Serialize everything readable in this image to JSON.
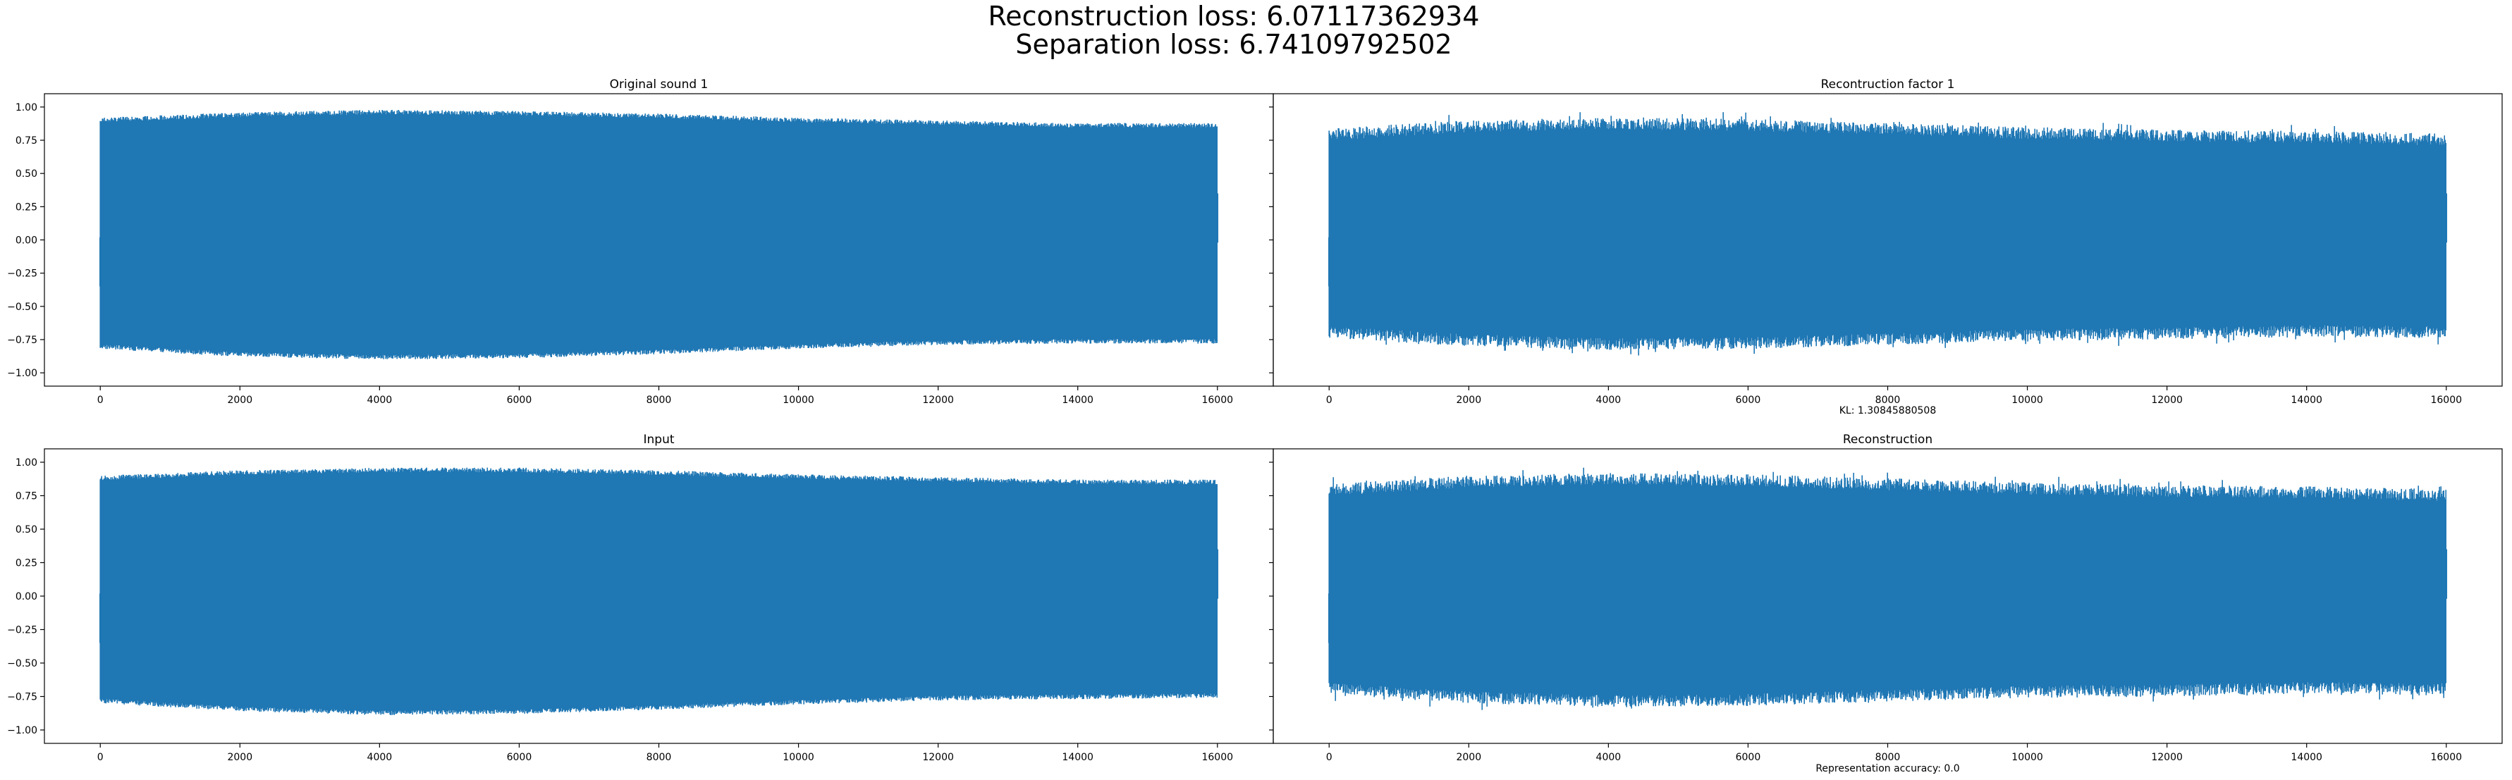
{
  "figure": {
    "suptitle_lines": [
      "Reconstruction loss: 6.07117362934",
      "Separation loss: 6.74109792502"
    ],
    "series_color": "#1f77b4",
    "axes_color": "#000000"
  },
  "chart_data": [
    {
      "type": "line",
      "title": "Original sound 1",
      "xlabel": "",
      "ylabel": "",
      "xlim": [
        -800,
        16800
      ],
      "ylim": [
        -1.1,
        1.1
      ],
      "xticks": [
        0,
        2000,
        4000,
        6000,
        8000,
        10000,
        12000,
        14000,
        16000
      ],
      "yticks": [
        1.0,
        0.75,
        0.5,
        0.25,
        0.0,
        -0.25,
        -0.5,
        -0.75,
        -1.0
      ],
      "ytick_labels": [
        "1.00",
        "0.75",
        "0.50",
        "0.25",
        "0.00",
        "−0.25",
        "−0.50",
        "−0.75",
        "−1.00"
      ],
      "footnote": "",
      "show_yticklabels": true,
      "n_samples": 16000,
      "envelope": {
        "x": [
          0,
          2000,
          4000,
          6000,
          8000,
          10000,
          12000,
          14000,
          16000
        ],
        "upper": [
          0.92,
          0.96,
          0.98,
          0.97,
          0.95,
          0.92,
          0.9,
          0.88,
          0.88
        ],
        "lower": [
          -0.82,
          -0.88,
          -0.9,
          -0.89,
          -0.86,
          -0.82,
          -0.79,
          -0.78,
          -0.78
        ]
      },
      "series": [
        {
          "values": "16000 samples of audio waveform (dense oscillation within envelope)"
        }
      ]
    },
    {
      "type": "line",
      "title": "Recontruction factor 1",
      "xlabel": "",
      "ylabel": "",
      "xlim": [
        -800,
        16800
      ],
      "ylim": [
        -1.1,
        1.1
      ],
      "xticks": [
        0,
        2000,
        4000,
        6000,
        8000,
        10000,
        12000,
        14000,
        16000
      ],
      "yticks": [
        1.0,
        0.75,
        0.5,
        0.25,
        0.0,
        -0.25,
        -0.5,
        -0.75,
        -1.0
      ],
      "footnote": "KL: 1.30845880508",
      "show_yticklabels": false,
      "n_samples": 16000,
      "envelope": {
        "x": [
          0,
          2000,
          4000,
          6000,
          8000,
          10000,
          12000,
          14000,
          16000
        ],
        "upper": [
          0.84,
          0.9,
          0.92,
          0.91,
          0.88,
          0.85,
          0.83,
          0.82,
          0.8
        ],
        "lower": [
          -0.74,
          -0.8,
          -0.83,
          -0.82,
          -0.79,
          -0.76,
          -0.75,
          -0.73,
          -0.74
        ]
      },
      "series": [
        {
          "values": "16000 samples of reconstructed waveform (noisier envelope)"
        }
      ]
    },
    {
      "type": "line",
      "title": "Input",
      "xlabel": "",
      "ylabel": "",
      "xlim": [
        -800,
        16800
      ],
      "ylim": [
        -1.1,
        1.1
      ],
      "xticks": [
        0,
        2000,
        4000,
        6000,
        8000,
        10000,
        12000,
        14000,
        16000
      ],
      "yticks": [
        1.0,
        0.75,
        0.5,
        0.25,
        0.0,
        -0.25,
        -0.5,
        -0.75,
        -1.0
      ],
      "ytick_labels": [
        "1.00",
        "0.75",
        "0.50",
        "0.25",
        "0.00",
        "−0.25",
        "−0.50",
        "−0.75",
        "−1.00"
      ],
      "footnote": "",
      "show_yticklabels": true,
      "n_samples": 16000,
      "envelope": {
        "x": [
          0,
          2000,
          4000,
          6000,
          8000,
          10000,
          12000,
          14000,
          16000
        ],
        "upper": [
          0.9,
          0.94,
          0.96,
          0.96,
          0.94,
          0.91,
          0.89,
          0.87,
          0.87
        ],
        "lower": [
          -0.8,
          -0.86,
          -0.89,
          -0.88,
          -0.85,
          -0.81,
          -0.78,
          -0.77,
          -0.76
        ]
      },
      "series": [
        {
          "values": "16000 samples of input waveform (dense oscillation within envelope)"
        }
      ]
    },
    {
      "type": "line",
      "title": "Reconstruction",
      "xlabel": "",
      "ylabel": "",
      "xlim": [
        -800,
        16800
      ],
      "ylim": [
        -1.1,
        1.1
      ],
      "xticks": [
        0,
        2000,
        4000,
        6000,
        8000,
        10000,
        12000,
        14000,
        16000
      ],
      "yticks": [
        1.0,
        0.75,
        0.5,
        0.25,
        0.0,
        -0.25,
        -0.5,
        -0.75,
        -1.0
      ],
      "footnote": "Representation accuracy: 0.0",
      "show_yticklabels": false,
      "n_samples": 16000,
      "envelope": {
        "x": [
          0,
          2000,
          4000,
          6000,
          8000,
          10000,
          12000,
          14000,
          16000
        ],
        "upper": [
          0.84,
          0.9,
          0.92,
          0.91,
          0.88,
          0.85,
          0.83,
          0.82,
          0.8
        ],
        "lower": [
          -0.74,
          -0.8,
          -0.83,
          -0.82,
          -0.79,
          -0.76,
          -0.75,
          -0.73,
          -0.74
        ]
      },
      "series": [
        {
          "values": "16000 samples of reconstructed waveform (noisier envelope)"
        }
      ]
    }
  ]
}
